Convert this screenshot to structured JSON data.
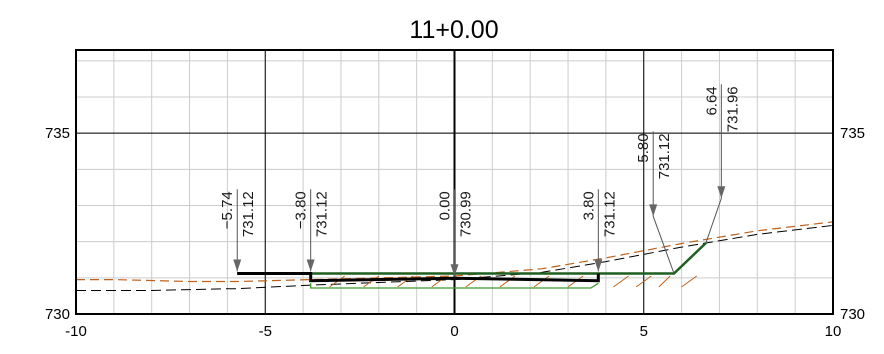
{
  "title": "11+0.00",
  "x_axis": {
    "min": -10,
    "max": 10,
    "ticks": [
      {
        "value": -10,
        "label": "-10"
      },
      {
        "value": -5,
        "label": "-5"
      },
      {
        "value": 0,
        "label": "0"
      },
      {
        "value": 5,
        "label": "5"
      },
      {
        "value": 10,
        "label": "10"
      }
    ]
  },
  "y_axis": {
    "min": 730,
    "max": 737.3,
    "ticks": [
      {
        "value": 730,
        "label": "730"
      },
      {
        "value": 735,
        "label": "735"
      }
    ]
  },
  "annotations": [
    {
      "offset": -5.74,
      "elevation": 731.12,
      "offset_label": "−5.74",
      "elev_label": "731.12"
    },
    {
      "offset": -3.8,
      "elevation": 731.12,
      "offset_label": "−3.80",
      "elev_label": "731.12"
    },
    {
      "offset": 0.0,
      "elevation": 730.99,
      "offset_label": "0.00",
      "elev_label": "730.99"
    },
    {
      "offset": 3.8,
      "elevation": 731.12,
      "offset_label": "3.80",
      "elev_label": "731.12"
    },
    {
      "offset": 5.8,
      "elevation": 731.12,
      "offset_label": "5.80",
      "elev_label": "731.12"
    },
    {
      "offset": 6.64,
      "elevation": 731.96,
      "offset_label": "6.64",
      "elev_label": "731.96"
    }
  ],
  "colors": {
    "finished_grade": "#000000",
    "sidewalk_green": "#1f5f1f",
    "subbase_green": "#3a9a2a",
    "existing_ground_orange": "#c0601a",
    "existing_ground_black": "#000000",
    "grid": "#cccccc"
  },
  "chart_data": {
    "type": "line",
    "title": "11+0.00",
    "xlabel": "",
    "ylabel": "",
    "xlim": [
      -10,
      10
    ],
    "ylim": [
      730,
      737.3
    ],
    "grid": true,
    "series": [
      {
        "x": [
          -5.74,
          -3.8,
          -3.8,
          0,
          3.8,
          3.8
        ],
        "y": [
          731.12,
          731.12,
          730.92,
          730.99,
          730.92,
          731.12
        ]
      },
      {
        "x": [
          -5.74,
          -3.8,
          3.8,
          5.8,
          6.64
        ],
        "y": [
          731.12,
          731.12,
          731.12,
          731.12,
          731.96
        ]
      },
      {
        "x": [
          -3.8,
          -3.8,
          3.6,
          3.8,
          3.8
        ],
        "y": [
          730.85,
          730.72,
          730.72,
          730.85,
          730.85
        ]
      },
      {
        "x": [
          -10,
          -9,
          -7,
          -6,
          -5.74,
          -3.8,
          0,
          2.3,
          4,
          6,
          8,
          10
        ],
        "y": [
          730.95,
          730.95,
          730.9,
          730.9,
          730.9,
          730.95,
          731.05,
          731.25,
          731.55,
          731.95,
          732.3,
          732.55
        ]
      },
      {
        "x": [
          -10,
          -8,
          -6,
          -5.74,
          -3.8,
          0,
          2.3,
          4,
          6,
          8,
          10
        ],
        "y": [
          730.65,
          730.65,
          730.7,
          730.7,
          730.8,
          730.95,
          731.15,
          731.45,
          731.85,
          732.2,
          732.45
        ]
      }
    ]
  }
}
